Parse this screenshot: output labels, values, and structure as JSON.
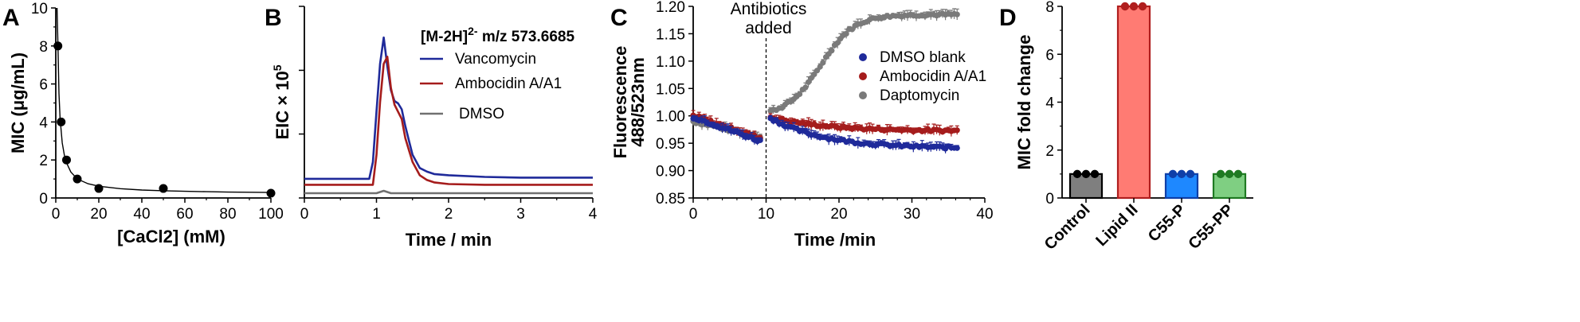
{
  "chart_data": [
    {
      "panel": "A",
      "type": "scatter",
      "xlabel": "[CaCl2]  (mM)",
      "ylabel": "MIC  (μg/mL)",
      "xlim": [
        0,
        100
      ],
      "ylim": [
        0,
        10
      ],
      "xticks": [
        "0",
        "20",
        "40",
        "60",
        "80",
        "100"
      ],
      "yticks": [
        "0",
        "2",
        "4",
        "6",
        "8",
        "10"
      ],
      "points": [
        {
          "x": 1,
          "y": 8
        },
        {
          "x": 2.5,
          "y": 4
        },
        {
          "x": 5,
          "y": 2
        },
        {
          "x": 10,
          "y": 1
        },
        {
          "x": 20,
          "y": 0.5
        },
        {
          "x": 50,
          "y": 0.5
        },
        {
          "x": 100,
          "y": 0.25
        }
      ],
      "fit_curve": {
        "x": [
          0.6,
          1,
          1.5,
          2,
          3,
          4,
          5,
          7,
          10,
          15,
          20,
          30,
          40,
          50,
          60,
          70,
          80,
          90,
          100
        ],
        "y": [
          10,
          8.1,
          5.5,
          4.2,
          2.9,
          2.25,
          1.85,
          1.37,
          1.0,
          0.75,
          0.62,
          0.49,
          0.42,
          0.38,
          0.35,
          0.33,
          0.31,
          0.3,
          0.29
        ]
      },
      "grid": false
    },
    {
      "panel": "B",
      "type": "line",
      "xlabel": "Time / min",
      "ylabel": "EIC × 10",
      "ylabel_sup": "5",
      "xlim": [
        0,
        4
      ],
      "ylim": [
        0,
        8
      ],
      "xticks": [
        "0",
        "1",
        "2",
        "3",
        "4"
      ],
      "legend_title": "[M-2H]",
      "legend_title_sup": "2-",
      "legend_title_rest": " m/z 573.6685",
      "series": [
        {
          "name": "Vancomycin",
          "color": "#1f2a9a",
          "x": [
            0,
            0.9,
            0.95,
            1.0,
            1.05,
            1.1,
            1.15,
            1.2,
            1.25,
            1.3,
            1.35,
            1.4,
            1.45,
            1.5,
            1.6,
            1.7,
            1.8,
            2.0,
            2.5,
            3.0,
            3.5,
            4.0
          ],
          "y": [
            0.8,
            0.8,
            1.5,
            3.6,
            5.6,
            6.7,
            5.5,
            4.5,
            4.05,
            3.95,
            3.7,
            3.0,
            2.4,
            1.8,
            1.25,
            1.1,
            1.0,
            0.95,
            0.88,
            0.85,
            0.85,
            0.85
          ]
        },
        {
          "name": "Ambocidin A/A1",
          "color": "#a51c1c",
          "x": [
            0,
            0.95,
            1.0,
            1.05,
            1.1,
            1.15,
            1.2,
            1.25,
            1.3,
            1.35,
            1.4,
            1.45,
            1.5,
            1.6,
            1.7,
            1.8,
            2.0,
            2.5,
            3.0,
            3.5,
            4.0
          ],
          "y": [
            0.55,
            0.55,
            1.8,
            4.0,
            5.6,
            5.9,
            4.6,
            3.9,
            3.6,
            3.3,
            2.5,
            2.0,
            1.5,
            0.95,
            0.75,
            0.65,
            0.58,
            0.55,
            0.55,
            0.55,
            0.55
          ]
        },
        {
          "name": "DMSO",
          "color": "#707070",
          "x": [
            0,
            1.0,
            1.1,
            1.2,
            2.0,
            3.0,
            4.0
          ],
          "y": [
            0.2,
            0.2,
            0.3,
            0.2,
            0.2,
            0.2,
            0.2
          ]
        }
      ],
      "grid": false
    },
    {
      "panel": "C",
      "type": "scatter",
      "xlabel": "Time /min",
      "ylabel_line1": "Fluorescence",
      "ylabel_line2": "488/523nm",
      "xlim": [
        0,
        40
      ],
      "ylim": [
        0.85,
        1.2
      ],
      "xticks": [
        "0",
        "10",
        "20",
        "30",
        "40"
      ],
      "yticks": [
        "0.85",
        "0.90",
        "0.95",
        "1.00",
        "1.05",
        "1.10",
        "1.15",
        "1.20"
      ],
      "annotation_line1": "Antibiotics",
      "annotation_line2": "added",
      "annotation_x": 10,
      "series": [
        {
          "name": "DMSO blank",
          "color": "#1f2a9a",
          "start_y": 0.998,
          "pre_end_y": 0.952,
          "post_start_y": 0.996,
          "post_end_y": 0.94,
          "type": "decay"
        },
        {
          "name": "Ambocidin A/A1",
          "color": "#a51c1c",
          "start_y": 1.0,
          "pre_end_y": 0.957,
          "post_start_y": 0.998,
          "post_end_y": 0.972,
          "type": "decay"
        },
        {
          "name": "Daptomycin",
          "color": "#7a7a7a",
          "start_y": 0.99,
          "pre_end_y": 0.96,
          "post_start_y": 1.0,
          "post_end_y": 1.185,
          "type": "sigmoid"
        }
      ],
      "grid": false
    },
    {
      "panel": "D",
      "type": "bar",
      "ylabel": "MIC fold change",
      "ylim": [
        0,
        8
      ],
      "yticks": [
        "0",
        "2",
        "4",
        "6",
        "8"
      ],
      "categories": [
        "Control",
        "Lipid II",
        "C55-P",
        "C55-PP"
      ],
      "values": [
        1,
        8,
        1,
        1
      ],
      "fill_colors": [
        "#7f7f7f",
        "#ff7b73",
        "#1e88ff",
        "#7fcf82"
      ],
      "edge_colors": [
        "#000000",
        "#b01e1e",
        "#0f3fa8",
        "#1f7a22"
      ],
      "grid": false
    }
  ],
  "panel_letters": [
    "A",
    "B",
    "C",
    "D"
  ]
}
